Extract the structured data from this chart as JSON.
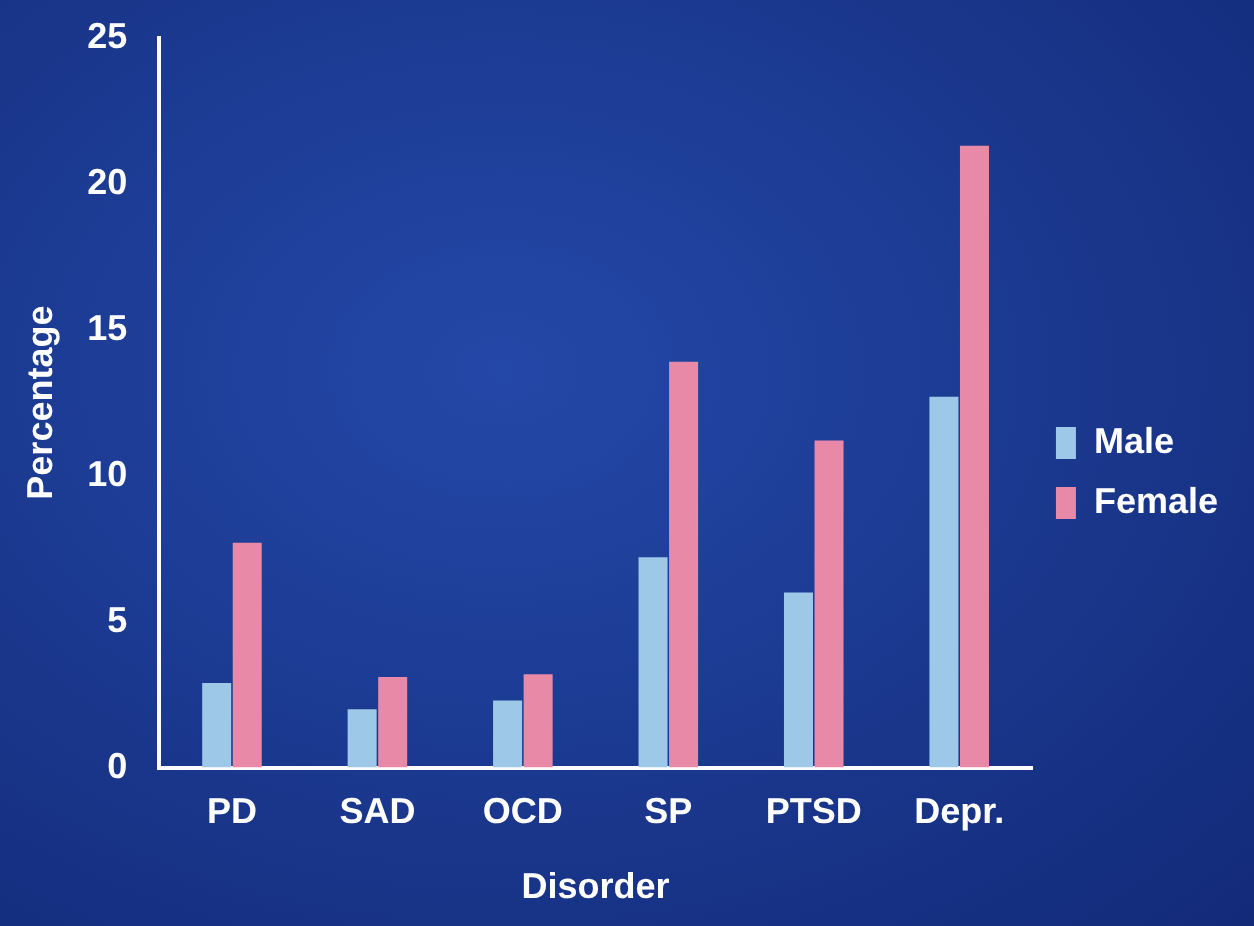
{
  "chart_data": {
    "type": "bar",
    "xlabel": "Disorder",
    "ylabel": "Percentage",
    "categories": [
      "PD",
      "SAD",
      "OCD",
      "SP",
      "PTSD",
      "Depr."
    ],
    "series": [
      {
        "name": "Male",
        "color": "#9ec8e8",
        "values": [
          2.9,
          2.0,
          2.3,
          7.2,
          6.0,
          12.7
        ]
      },
      {
        "name": "Female",
        "color": "#e889a8",
        "values": [
          7.7,
          3.1,
          3.2,
          13.9,
          11.2,
          21.3
        ]
      }
    ],
    "ylim": [
      0,
      25
    ],
    "yticks": [
      0,
      5,
      10,
      15,
      20,
      25
    ],
    "grid": false,
    "legend": "right"
  }
}
